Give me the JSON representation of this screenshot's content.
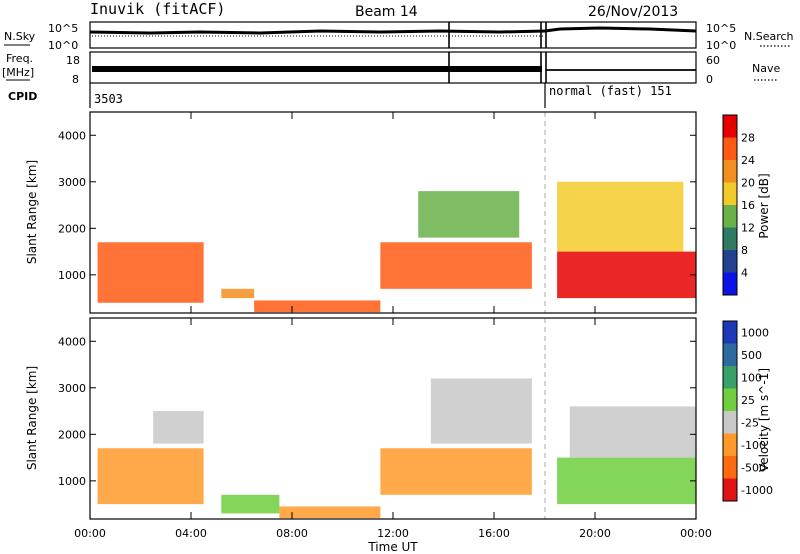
{
  "header": {
    "station": "Inuvik (fitACF)",
    "beam": "Beam 14",
    "date": "26/Nov/2013"
  },
  "strip_labels": {
    "nsky": "N.Sky",
    "nsky_ticks": [
      "10^5",
      "10^0"
    ],
    "nsearch": "N.Search",
    "nsearch_ticks": [
      "10^5",
      "10^0"
    ],
    "freq_top": "Freq.",
    "freq_unit": "[MHz]",
    "freq_ticks": [
      "18",
      "8"
    ],
    "nave": "Nave",
    "nave_ticks": [
      "60",
      "0"
    ],
    "cpid": "CPID",
    "cpid_left": "3503",
    "cpid_right": "normal (fast) 151"
  },
  "colors": {
    "power": [
      "#0a14e6",
      "#24418f",
      "#2f7a63",
      "#69b24a",
      "#f2cb2a",
      "#f28f1e",
      "#ff5a14",
      "#e60000"
    ],
    "velocity": [
      "#1d38b8",
      "#2d6aa0",
      "#3aa06a",
      "#6fcf3e",
      "#c8c8c8",
      "#ff9a2a",
      "#ff6a10",
      "#e01414"
    ]
  },
  "chart_data": [
    {
      "type": "heatmap",
      "name": "power",
      "ylabel": "Slant Range [km]",
      "xlabel": "Time UT",
      "x_ticks": [
        "00:00",
        "04:00",
        "08:00",
        "12:00",
        "16:00",
        "20:00",
        "00:00"
      ],
      "y_ticks": [
        "1000",
        "2000",
        "3000",
        "4000"
      ],
      "xlim": [
        0,
        24
      ],
      "ylim": [
        180,
        4500
      ],
      "colorbar_label": "Power [dB]",
      "colorbar_ticks": [
        "4",
        "8",
        "12",
        "16",
        "20",
        "24",
        "28"
      ],
      "regions": [
        {
          "x": [
            0.3,
            4.5
          ],
          "y": [
            400,
            1700
          ],
          "level": 6
        },
        {
          "x": [
            5.2,
            6.5
          ],
          "y": [
            500,
            700
          ],
          "level": 5
        },
        {
          "x": [
            6.5,
            11.5
          ],
          "y": [
            200,
            450
          ],
          "level": 6
        },
        {
          "x": [
            11.5,
            17.5
          ],
          "y": [
            700,
            1700
          ],
          "level": 6
        },
        {
          "x": [
            13.0,
            17.0
          ],
          "y": [
            1800,
            2800
          ],
          "level": 3
        },
        {
          "x": [
            18.5,
            24.0
          ],
          "y": [
            500,
            1500
          ],
          "level": 7
        },
        {
          "x": [
            18.5,
            23.5
          ],
          "y": [
            1500,
            3000
          ],
          "level": 4
        }
      ]
    },
    {
      "type": "heatmap",
      "name": "velocity",
      "ylabel": "Slant Range [km]",
      "xlabel": "Time UT",
      "x_ticks": [
        "00:00",
        "04:00",
        "08:00",
        "12:00",
        "16:00",
        "20:00",
        "00:00"
      ],
      "y_ticks": [
        "1000",
        "2000",
        "3000",
        "4000"
      ],
      "xlim": [
        0,
        24
      ],
      "ylim": [
        180,
        4500
      ],
      "colorbar_label": "Velocity [m s^-1]",
      "colorbar_ticks": [
        "1000",
        "500",
        "100",
        "25",
        "-25",
        "-100",
        "-500",
        "-1000"
      ],
      "regions": [
        {
          "x": [
            0.3,
            4.5
          ],
          "y": [
            500,
            1700
          ],
          "level": 5
        },
        {
          "x": [
            2.5,
            4.5
          ],
          "y": [
            1800,
            2500
          ],
          "level": 4
        },
        {
          "x": [
            5.2,
            7.5
          ],
          "y": [
            300,
            700
          ],
          "level": 3
        },
        {
          "x": [
            7.5,
            11.5
          ],
          "y": [
            200,
            450
          ],
          "level": 5
        },
        {
          "x": [
            11.5,
            17.5
          ],
          "y": [
            700,
            1700
          ],
          "level": 5
        },
        {
          "x": [
            13.5,
            17.5
          ],
          "y": [
            1800,
            3200
          ],
          "level": 4
        },
        {
          "x": [
            18.5,
            24.0
          ],
          "y": [
            500,
            1500
          ],
          "level": 3
        },
        {
          "x": [
            19.0,
            24.0
          ],
          "y": [
            1500,
            2600
          ],
          "level": 4
        }
      ]
    }
  ]
}
